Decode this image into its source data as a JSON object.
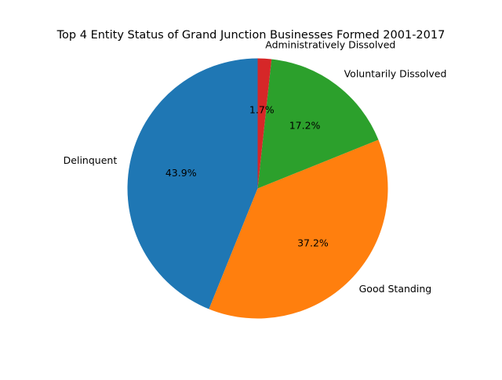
{
  "chart_data": {
    "type": "pie",
    "title": "Top 4 Entity Status of Grand Junction Businesses Formed 2001-2017",
    "slices": [
      {
        "label": "Delinquent",
        "value": 43.9,
        "pct_label": "43.9%",
        "color": "#1f77b4"
      },
      {
        "label": "Good Standing",
        "value": 37.2,
        "pct_label": "37.2%",
        "color": "#ff7f0e"
      },
      {
        "label": "Voluntarily Dissolved",
        "value": 17.2,
        "pct_label": "17.2%",
        "color": "#2ca02c"
      },
      {
        "label": "Administratively Dissolved",
        "value": 1.7,
        "pct_label": "1.7%",
        "color": "#d62728"
      }
    ],
    "start_angle_deg": 90,
    "direction": "counterclockwise"
  }
}
